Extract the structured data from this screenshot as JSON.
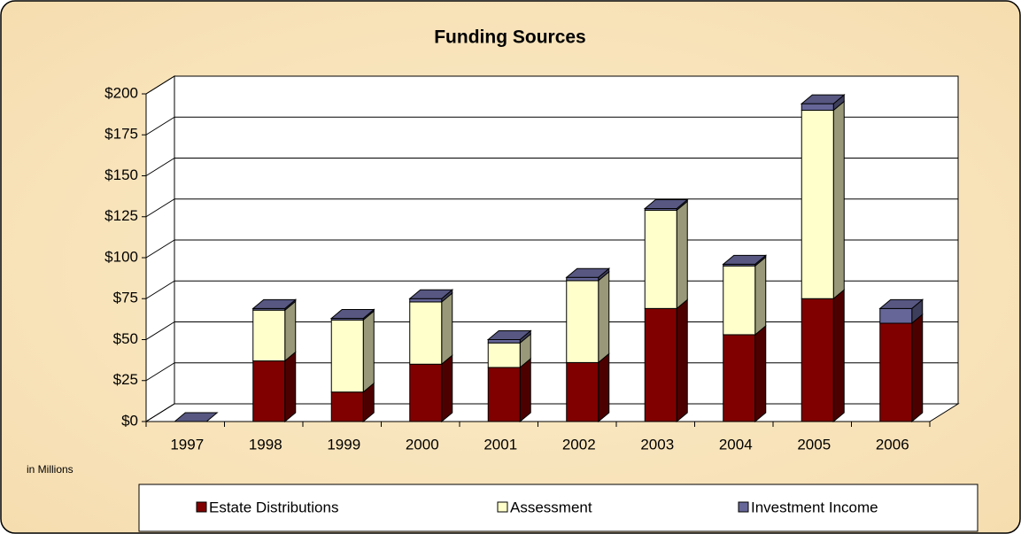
{
  "chart_data": {
    "type": "bar3d_stacked",
    "title": "Funding Sources",
    "axis_note": "in Millions",
    "categories": [
      "1997",
      "1998",
      "1999",
      "2000",
      "2001",
      "2002",
      "2003",
      "2004",
      "2005",
      "2006"
    ],
    "series": [
      {
        "name": "Estate Distributions",
        "color": "#800000",
        "values": [
          0,
          37,
          18,
          35,
          33,
          36,
          69,
          53,
          75,
          60
        ]
      },
      {
        "name": "Assessment",
        "color": "#ffffcc",
        "values": [
          0,
          31,
          44,
          38,
          15,
          50,
          60,
          42,
          115,
          0
        ]
      },
      {
        "name": "Investment Income",
        "color": "#666699",
        "values": [
          0,
          1,
          1,
          2,
          2,
          2,
          1,
          1,
          4,
          9
        ]
      }
    ],
    "ylim": [
      0,
      200
    ],
    "yticks": [
      {
        "value": 0,
        "label": "$0"
      },
      {
        "value": 25,
        "label": "$25"
      },
      {
        "value": 50,
        "label": "$50"
      },
      {
        "value": 75,
        "label": "$75"
      },
      {
        "value": 100,
        "label": "$100"
      },
      {
        "value": 125,
        "label": "$125"
      },
      {
        "value": 150,
        "label": "$150"
      },
      {
        "value": 175,
        "label": "$175"
      },
      {
        "value": 200,
        "label": "$200"
      }
    ],
    "grid": true,
    "legend": "bottom"
  }
}
